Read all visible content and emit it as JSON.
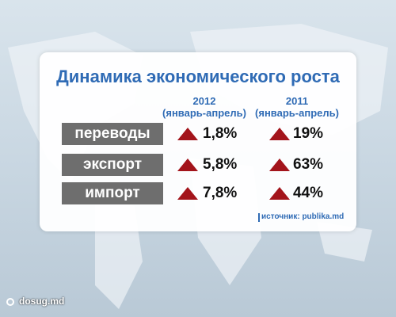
{
  "header": {
    "title": "Динамика экономического роста"
  },
  "table": {
    "columns": [
      {
        "year": "2012",
        "period": "(январь-апрель)"
      },
      {
        "year": "2011",
        "period": "(январь-апрель)"
      }
    ],
    "rows": [
      [
        "переводы",
        "1,8%",
        "19%"
      ],
      [
        "экспорт",
        "5,8%",
        "63%"
      ],
      [
        "импорт",
        "7,8%",
        "44%"
      ]
    ]
  },
  "source": "источник: publika.md",
  "watermark": "dosug.md"
}
